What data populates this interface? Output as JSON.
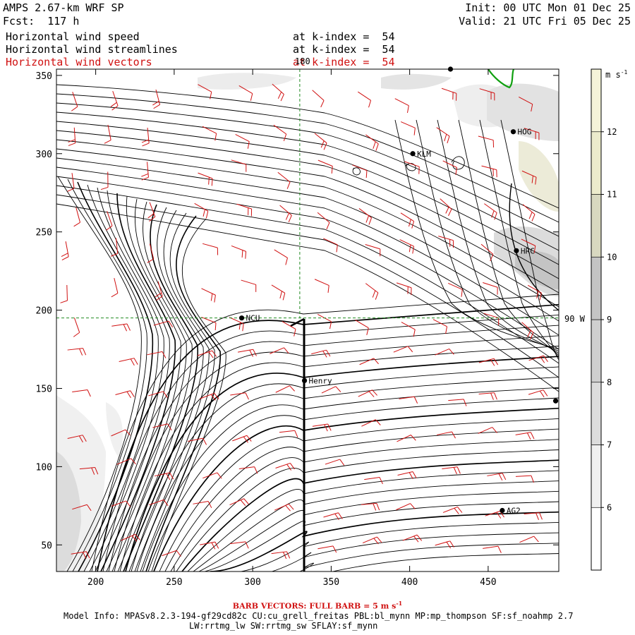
{
  "header": {
    "title": "AMPS 2.67-km WRF SP",
    "forecast": "Fcst:  117 h",
    "init": "Init: 00 UTC Mon 01 Dec 25",
    "valid": "Valid: 21 UTC Fri 05 Dec 25",
    "fields": [
      {
        "name": "Horizontal wind speed",
        "level": "at k-index =  54",
        "color": "#000000"
      },
      {
        "name": "Horizontal wind streamlines",
        "level": "at k-index =  54",
        "color": "#000000"
      },
      {
        "name": "Horizontal wind vectors",
        "level": "at k-index =  54",
        "color": "#d01010"
      }
    ]
  },
  "footer": {
    "barb_note": "BARB VECTORS:  FULL BARB = 5 m s",
    "barb_exp": "-1",
    "model_info": "Model Info: MPASv8.2.3-194-gf29cd82c CU:cu_grell_freitas PBL:bl_mynn MP:mp_thompson SF:sf_noahmp 2.7",
    "physics": "LW:rrtmg_lw SW:rrtmg_sw SFLAY:sf_mynn"
  },
  "map_labels": {
    "meridian_top": "180",
    "meridian_right": "90 W"
  },
  "chart_data": {
    "type": "heatmap",
    "xlim": [
      175,
      495
    ],
    "ylim": [
      33,
      354
    ],
    "x_ticks": [
      200,
      250,
      300,
      350,
      400,
      450
    ],
    "y_ticks": [
      50,
      100,
      150,
      200,
      250,
      300,
      350
    ],
    "colorbar": {
      "unit": "m s",
      "unit_exp": "-1",
      "levels": [
        6,
        7,
        8,
        9,
        10,
        11,
        12
      ],
      "colors": [
        "#ffffff",
        "#f0f0f0",
        "#dcdcdc",
        "#cfcfcf",
        "#c4c4c4",
        "#d8d8c0",
        "#ecebcc",
        "#f5f3d9"
      ]
    },
    "stations": [
      {
        "name": "NCU",
        "x": 293,
        "y": 195
      },
      {
        "name": "Henry",
        "x": 333,
        "y": 155
      },
      {
        "name": "KLM",
        "x": 402,
        "y": 300
      },
      {
        "name": "HOG",
        "x": 466,
        "y": 314
      },
      {
        "name": "HRC",
        "x": 468,
        "y": 238
      },
      {
        "name": "AG2",
        "x": 459,
        "y": 72
      },
      {
        "name": "",
        "x": 426,
        "y": 354
      },
      {
        "name": "",
        "x": 493,
        "y": 142
      }
    ],
    "gridlines": {
      "x": 330,
      "y": 195
    }
  }
}
